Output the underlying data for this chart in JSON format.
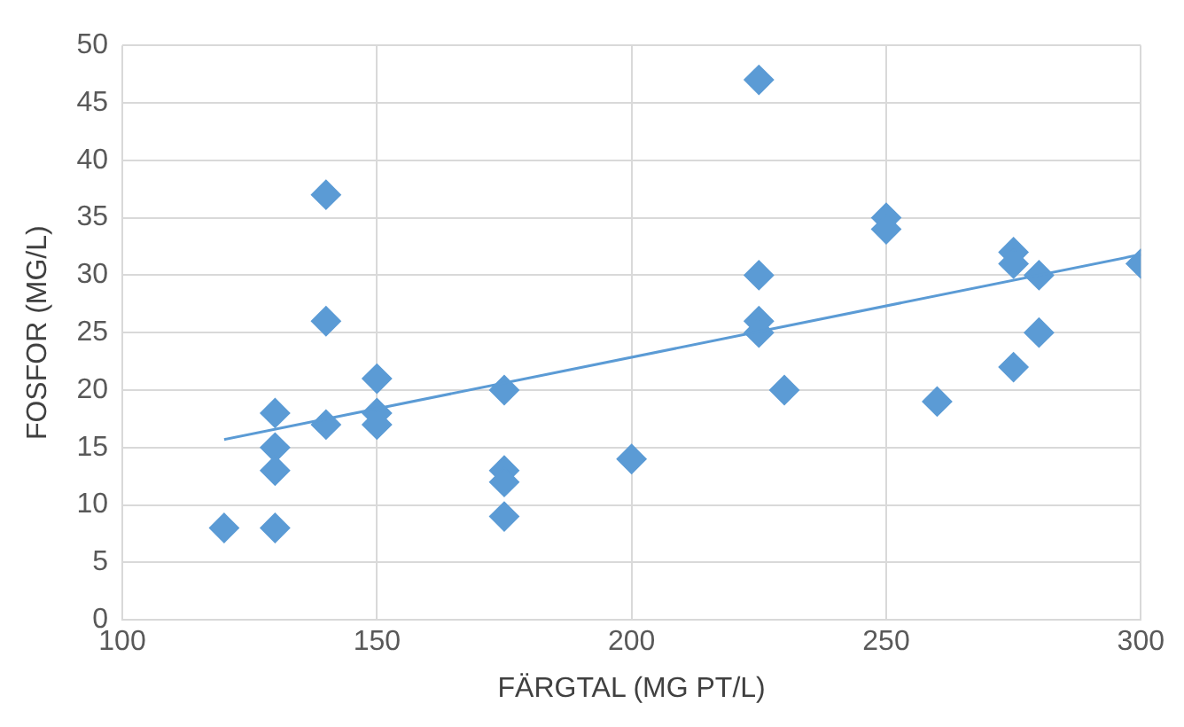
{
  "chart_data": {
    "type": "scatter",
    "xlabel": "FÄRGTAL (MG PT/L)",
    "ylabel": "FOSFOR (MG/L)",
    "xlim": [
      100,
      300
    ],
    "xticks": [
      100,
      150,
      200,
      250,
      300
    ],
    "ylim": [
      0,
      50
    ],
    "yticks": [
      0,
      5,
      10,
      15,
      20,
      25,
      30,
      35,
      40,
      45,
      50
    ],
    "grid": true,
    "legend": false,
    "marker": "diamond",
    "series": [
      {
        "color": "#5b9bd5",
        "x": [
          120,
          130,
          130,
          130,
          130,
          140,
          140,
          140,
          150,
          150,
          150,
          175,
          175,
          175,
          175,
          200,
          225,
          225,
          225,
          225,
          230,
          250,
          250,
          260,
          275,
          275,
          275,
          280,
          280,
          300
        ],
        "values": [
          8,
          18,
          15,
          13,
          8,
          37,
          26,
          17,
          21,
          18,
          17,
          20,
          13,
          12,
          9,
          14,
          47,
          30,
          26,
          25,
          20,
          35,
          34,
          19,
          32,
          31,
          22,
          30,
          25,
          31
        ]
      },
      {
        "type": "line",
        "marker": "none",
        "color": "#5b9bd5",
        "x": [
          120,
          300
        ],
        "values": [
          15.7,
          31.8
        ]
      }
    ]
  }
}
